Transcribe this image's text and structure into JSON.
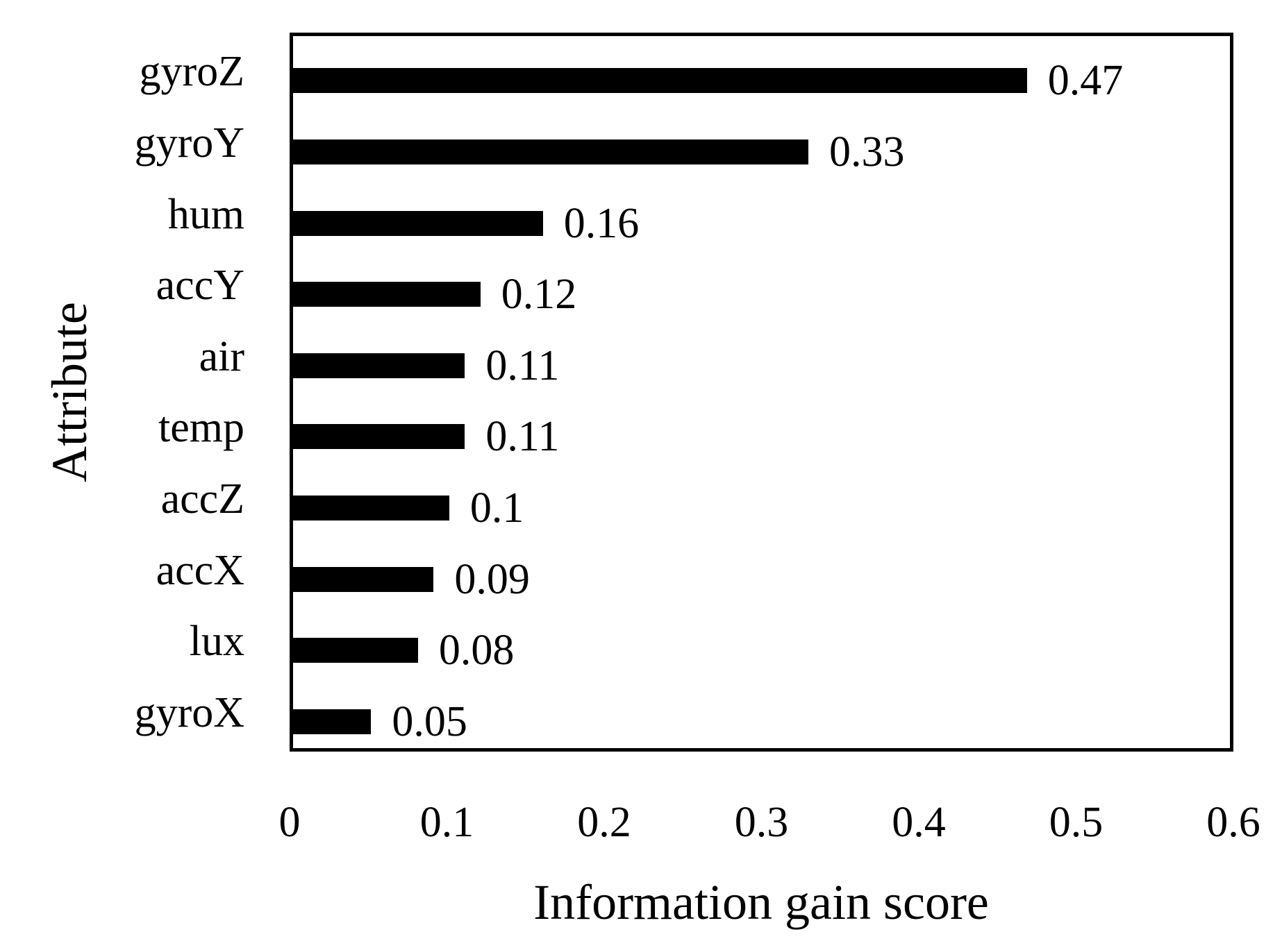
{
  "chart_data": {
    "type": "bar",
    "orientation": "horizontal",
    "title": "",
    "xlabel": "Information gain score",
    "ylabel": "Attribute",
    "categories": [
      "gyroZ",
      "gyroY",
      "hum",
      "accY",
      "air",
      "temp",
      "accZ",
      "accX",
      "lux",
      "gyroX"
    ],
    "values": [
      0.47,
      0.33,
      0.16,
      0.12,
      0.11,
      0.11,
      0.1,
      0.09,
      0.08,
      0.05
    ],
    "value_labels": [
      "0.47",
      "0.33",
      "0.16",
      "0.12",
      "0.11",
      "0.11",
      "0.1",
      "0.09",
      "0.08",
      "0.05"
    ],
    "xlim": [
      0,
      0.6
    ],
    "xticks": [
      "0",
      "0.1",
      "0.2",
      "0.3",
      "0.4",
      "0.5",
      "0.6"
    ],
    "grid": false,
    "legend_position": "none",
    "bar_color": "#000000",
    "frame_color": "#000000",
    "background_color": "#ffffff"
  }
}
